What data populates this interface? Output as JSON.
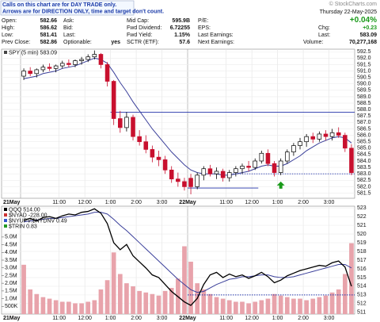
{
  "header": {
    "banner": [
      "Calls on this chart are for DAY TRADE only.",
      "Arrows are for DIRECTION ONLY, time and target don't count."
    ],
    "watermark": "© StockCharts.com",
    "date": "Thursday 22-May-2025",
    "change_pct": "+0.04%",
    "quote_columns": [
      [
        {
          "label": "Open:",
          "value": "582.66"
        },
        {
          "label": "High:",
          "value": "586.62"
        },
        {
          "label": "Low:",
          "value": "581.41"
        },
        {
          "label": "Prev Close:",
          "value": "582.86"
        }
      ],
      [
        {
          "label": "Ask:"
        },
        {
          "label": "Bid:"
        },
        {
          "label": "Last:"
        },
        {
          "label": "Optionable:",
          "value": "yes"
        }
      ],
      [
        {
          "label": "Mid Cap:",
          "value": "595.9B"
        },
        {
          "label": "Fwd Dividend:",
          "value": "6.72255"
        },
        {
          "label": "Fwd Yield:",
          "value": "1.15%"
        },
        {
          "label": "SCTR (ETF):",
          "value": "57.6"
        }
      ],
      [
        {
          "label": "P/E:"
        },
        {
          "label": "EPS:"
        },
        {
          "label": "Last Earnings:"
        },
        {
          "label": "Next Earnings:"
        }
      ]
    ],
    "right_rows": [
      {
        "label": "Chg:",
        "value": "+0.23"
      },
      {
        "label": "Last:",
        "value": "583.09"
      },
      {
        "label": "Volume:",
        "value": "70,277,168"
      }
    ]
  },
  "chart_data": [
    {
      "type": "candlestick",
      "legend": "SPY (5 min) 583.09",
      "categories": [
        "21May",
        null,
        null,
        null,
        null,
        null,
        "11:00",
        null,
        null,
        null,
        "12:00",
        null,
        null,
        null,
        "1:00",
        null,
        null,
        null,
        "2:00",
        null,
        null,
        null,
        "3:00",
        null,
        null,
        null,
        "22May",
        null,
        null,
        null,
        null,
        null,
        "11:00",
        null,
        null,
        null,
        "12:00",
        null,
        null,
        null,
        "1:00",
        null,
        null,
        null,
        "2:00",
        null,
        null,
        null,
        "3:00",
        null,
        null,
        null
      ],
      "open": [
        590.6,
        591.0,
        590.8,
        591.1,
        591.3,
        591.2,
        591.4,
        591.6,
        591.5,
        591.8,
        591.9,
        592.1,
        592.3,
        591.5,
        590.2,
        587.3,
        586.6,
        587.4,
        585.9,
        585.5,
        584.9,
        584.3,
        584.1,
        583.3,
        582.6,
        582.4,
        582.66,
        582.0,
        582.9,
        583.4,
        583.0,
        583.2,
        582.7,
        583.1,
        583.4,
        583.6,
        583.5,
        584.0,
        584.6,
        583.8,
        583.1,
        584.0,
        584.7,
        585.2,
        585.5,
        585.9,
        585.7,
        586.1,
        585.9,
        586.2,
        586.0,
        585.0
      ],
      "high": [
        591.2,
        591.3,
        591.2,
        591.5,
        591.6,
        591.5,
        591.8,
        591.9,
        591.9,
        592.1,
        592.3,
        592.6,
        592.4,
        591.7,
        590.3,
        587.9,
        587.8,
        587.6,
        586.4,
        586.0,
        585.2,
        584.8,
        584.4,
        583.6,
        583.1,
        582.7,
        583.0,
        583.1,
        583.6,
        583.7,
        583.5,
        583.4,
        583.3,
        583.6,
        583.8,
        584.0,
        584.2,
        584.8,
        584.9,
        584.0,
        584.2,
        584.9,
        585.4,
        585.8,
        586.1,
        586.2,
        586.3,
        586.4,
        586.5,
        586.62,
        586.2,
        585.3
      ],
      "low": [
        590.3,
        590.6,
        590.5,
        590.9,
        591.0,
        590.9,
        591.2,
        591.3,
        591.3,
        591.5,
        591.7,
        591.9,
        591.2,
        589.8,
        586.8,
        586.2,
        586.3,
        585.6,
        585.2,
        584.6,
        583.9,
        583.6,
        583.0,
        582.3,
        582.0,
        581.7,
        581.41,
        581.8,
        582.5,
        582.8,
        582.6,
        582.4,
        582.4,
        582.8,
        583.0,
        583.2,
        583.3,
        583.8,
        583.6,
        582.8,
        582.9,
        583.8,
        584.4,
        584.9,
        585.1,
        585.4,
        585.5,
        585.6,
        585.6,
        585.8,
        584.7,
        582.9
      ],
      "close": [
        591.0,
        590.8,
        591.1,
        591.3,
        591.2,
        591.4,
        591.6,
        591.5,
        591.8,
        591.9,
        592.1,
        592.3,
        591.5,
        590.2,
        587.3,
        586.6,
        587.4,
        585.9,
        585.5,
        584.9,
        584.3,
        584.1,
        583.3,
        582.6,
        582.4,
        582.0,
        582.0,
        582.9,
        583.4,
        583.0,
        583.2,
        582.7,
        583.1,
        583.4,
        583.6,
        583.5,
        584.0,
        584.6,
        583.8,
        583.1,
        584.0,
        584.7,
        585.2,
        585.5,
        585.9,
        585.7,
        586.1,
        585.9,
        586.2,
        586.0,
        585.0,
        583.09
      ],
      "up_color": "#000000",
      "down_color": "#c8102e",
      "ma": {
        "color": "#3a3f9a",
        "values": [
          590.4,
          590.5,
          590.6,
          590.8,
          590.9,
          591.0,
          591.2,
          591.3,
          591.4,
          591.6,
          591.8,
          592.0,
          591.9,
          591.6,
          590.9,
          590.1,
          589.4,
          588.6,
          587.9,
          587.2,
          586.5,
          585.9,
          585.3,
          584.7,
          584.2,
          583.7,
          583.3,
          583.1,
          583.0,
          583.0,
          583.0,
          582.9,
          582.9,
          583.0,
          583.1,
          583.2,
          583.4,
          583.6,
          583.7,
          583.6,
          583.6,
          583.8,
          584.1,
          584.4,
          584.8,
          585.1,
          585.4,
          585.6,
          585.8,
          585.9,
          585.8,
          585.4
        ]
      },
      "hlines": [
        {
          "value": 587.8,
          "start": 14,
          "end": 51,
          "dotted": false,
          "color": "#2233aa"
        },
        {
          "value": 581.9,
          "start": 26,
          "end": 36,
          "dotted": false,
          "color": "#2233aa"
        },
        {
          "value": 583.0,
          "start": 33,
          "end": 51,
          "dotted": true,
          "color": "#2233aa"
        }
      ],
      "arrow": {
        "index": 40,
        "value": 582.4,
        "color": "#1a9a1a"
      },
      "ylim": [
        581.1,
        592.7
      ],
      "yticks": [
        {
          "value": 581.5,
          "label": "581.5"
        },
        {
          "value": 582,
          "label": "582.0"
        },
        582.5,
        {
          "value": 583,
          "label": "583.0"
        },
        583.5,
        {
          "value": 584,
          "label": "584.0"
        },
        584.5,
        {
          "value": 585,
          "label": "585.0"
        },
        585.5,
        {
          "value": 586,
          "label": "586.0"
        },
        586.5,
        {
          "value": 587,
          "label": "587.0"
        },
        587.5,
        {
          "value": 588,
          "label": "588.0"
        },
        588.5,
        {
          "value": 589,
          "label": "589.0"
        },
        589.5,
        {
          "value": 590,
          "label": "590.0"
        },
        590.5,
        {
          "value": 591,
          "label": "591.0"
        },
        591.5,
        {
          "value": 592,
          "label": "592.0"
        },
        592.5
      ],
      "grid": true
    },
    {
      "type": "line",
      "categories": [
        "21May",
        null,
        null,
        null,
        null,
        null,
        "11:00",
        null,
        null,
        null,
        "12:00",
        null,
        null,
        null,
        "1:00",
        null,
        null,
        null,
        "2:00",
        null,
        null,
        null,
        "3:00",
        null,
        null,
        null,
        "22May",
        null,
        null,
        null,
        null,
        null,
        "11:00",
        null,
        null,
        null,
        "12:00",
        null,
        null,
        null,
        "1:00",
        null,
        null,
        null,
        "2:00",
        null,
        null,
        null,
        "3:00",
        null,
        null,
        null
      ],
      "series": [
        {
          "name": "QQQ 514.00",
          "color": "#000000",
          "axis": "y2",
          "values": [
            521.6,
            521.8,
            521.5,
            521.9,
            522.0,
            521.8,
            522.1,
            522.3,
            522.2,
            522.5,
            522.6,
            522.9,
            522.4,
            521.2,
            519.0,
            518.2,
            518.8,
            517.5,
            516.8,
            516.1,
            515.3,
            515.0,
            514.2,
            513.4,
            512.8,
            512.2,
            511.8,
            512.6,
            514.2,
            515.3,
            515.6,
            515.0,
            515.4,
            515.1,
            515.3,
            514.9,
            515.2,
            515.6,
            515.1,
            514.4,
            514.7,
            515.2,
            515.5,
            515.8,
            516.0,
            516.2,
            516.4,
            516.3,
            516.7,
            516.9,
            516.2,
            514.0
          ]
        }
      ],
      "indicators": [
        {
          "name": "$NYAD -228.00",
          "color": "#cc3333"
        },
        {
          "name": "$NYUPV:$NYDNV 0.49",
          "color": "#3355cc"
        },
        {
          "name": "$TRIN 0.83",
          "color": "#229922"
        }
      ],
      "ma": {
        "color": "#3a3f9a",
        "values": [
          521.4,
          521.5,
          521.6,
          521.7,
          521.8,
          521.8,
          521.9,
          522.0,
          522.1,
          522.2,
          522.3,
          522.5,
          522.5,
          522.3,
          521.7,
          521.0,
          520.4,
          519.7,
          519.0,
          518.3,
          517.6,
          516.9,
          516.2,
          515.5,
          514.8,
          514.2,
          513.6,
          513.3,
          513.4,
          513.8,
          514.2,
          514.5,
          514.8,
          514.9,
          515.1,
          515.1,
          515.2,
          515.3,
          515.3,
          515.1,
          515.0,
          515.0,
          515.1,
          515.3,
          515.5,
          515.7,
          515.9,
          516.1,
          516.3,
          516.5,
          516.5,
          516.1
        ]
      },
      "volume": {
        "color": "#e8a3ab",
        "values": [
          3200000,
          1600000,
          1300000,
          1100000,
          1000000,
          900000,
          800000,
          800000,
          700000,
          700000,
          800000,
          900000,
          1600000,
          2200000,
          4000000,
          2600000,
          2000000,
          1800000,
          1500000,
          1400000,
          1300000,
          1200000,
          1500000,
          1700000,
          2300000,
          4400000,
          3400000,
          2000000,
          1600000,
          1300000,
          1100000,
          1000000,
          900000,
          800000,
          800000,
          700000,
          800000,
          900000,
          1000000,
          1300000,
          1200000,
          1100000,
          1000000,
          1000000,
          900000,
          1000000,
          1100000,
          1200000,
          1400000,
          1600000,
          2600000,
          4600000
        ]
      },
      "hlines": [
        {
          "value": 513.0,
          "start": 26,
          "end": 51,
          "dotted": true,
          "color": "#2233aa"
        }
      ],
      "ylim": [
        0,
        7000000
      ],
      "yticks": [
        {
          "value": 500000,
          "label": "500K"
        },
        {
          "value": 1000000,
          "label": "1.0M"
        },
        {
          "value": 1500000,
          "label": "1.5M"
        },
        {
          "value": 2000000,
          "label": "2.0M"
        },
        {
          "value": 2500000,
          "label": "2.5M"
        },
        {
          "value": 3000000,
          "label": "3.0M"
        },
        {
          "value": 3500000,
          "label": "3.5M"
        },
        {
          "value": 4000000,
          "label": "4.0M"
        },
        {
          "value": 4500000,
          "label": "4.5M"
        },
        {
          "value": 5000000,
          "label": "5.0M"
        }
      ],
      "y2lim": [
        510.8,
        523.2
      ],
      "y2ticks": [
        511,
        512,
        513,
        514,
        515,
        516,
        517,
        518,
        519,
        520,
        521,
        522,
        523
      ],
      "grid": true
    }
  ]
}
